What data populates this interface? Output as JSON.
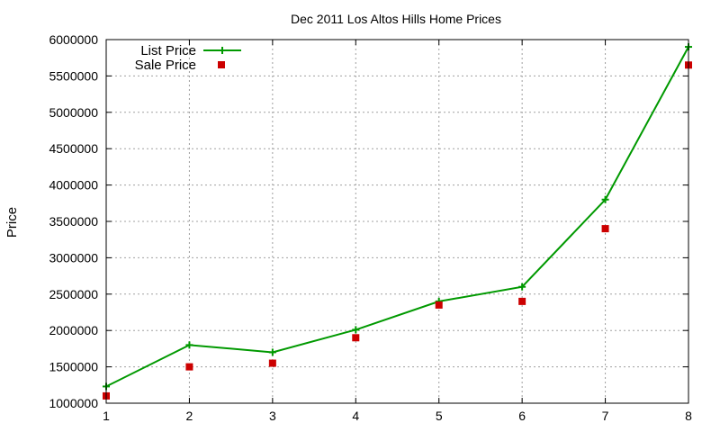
{
  "chart_data": {
    "type": "line",
    "title": "Dec 2011 Los Altos Hills Home Prices",
    "xlabel": "",
    "ylabel": "Price",
    "x": [
      1,
      2,
      3,
      4,
      5,
      6,
      7,
      8
    ],
    "xlim": [
      1,
      8
    ],
    "ylim": [
      1000000,
      6000000
    ],
    "xticks": [
      "1",
      "2",
      "3",
      "4",
      "5",
      "6",
      "7",
      "8"
    ],
    "yticks": [
      "1000000",
      "1500000",
      "2000000",
      "2500000",
      "3000000",
      "3500000",
      "4000000",
      "4500000",
      "5000000",
      "5500000",
      "6000000"
    ],
    "grid": true,
    "legend_position": "top-left",
    "series": [
      {
        "name": "List Price",
        "style": "line-with-plus-markers",
        "color": "#009900",
        "values": [
          1230000,
          1800000,
          1700000,
          2010000,
          2400000,
          2600000,
          3800000,
          5900000
        ]
      },
      {
        "name": "Sale Price",
        "style": "square-markers",
        "color": "#cc0000",
        "values": [
          1100000,
          1500000,
          1550000,
          1900000,
          2350000,
          2400000,
          3400000,
          5650000
        ]
      }
    ]
  }
}
